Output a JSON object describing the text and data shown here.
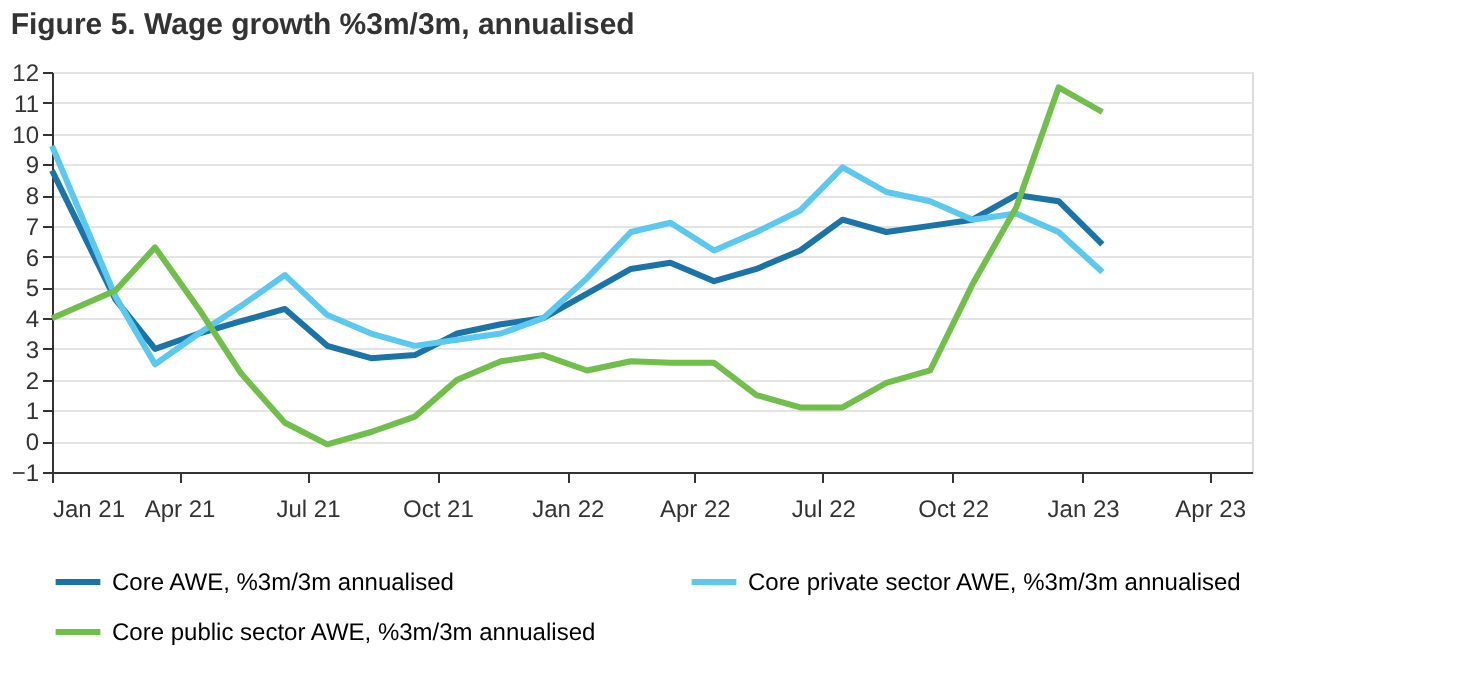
{
  "chart_data": {
    "type": "line",
    "title": "Figure 5. Wage growth %3m/3m, annualised",
    "x": [
      "2021-01-01",
      "2021-02-15",
      "2021-03-15",
      "2021-04-15",
      "2021-05-15",
      "2021-06-15",
      "2021-07-15",
      "2021-08-15",
      "2021-09-15",
      "2021-10-15",
      "2021-11-15",
      "2021-12-15",
      "2022-01-15",
      "2022-02-15",
      "2022-03-15",
      "2022-04-15",
      "2022-05-15",
      "2022-06-15",
      "2022-07-15",
      "2022-08-15",
      "2022-09-15",
      "2022-10-15",
      "2022-11-15",
      "2022-12-15",
      "2023-01-15"
    ],
    "series": [
      {
        "name": "Core AWE, %3m/3m annualised",
        "color": "#1a74a8",
        "values": [
          8.8,
          4.6,
          3.0,
          3.5,
          3.9,
          4.3,
          3.1,
          2.7,
          2.8,
          3.5,
          3.8,
          4.0,
          4.8,
          5.6,
          5.8,
          5.2,
          5.6,
          6.2,
          7.2,
          6.8,
          7.0,
          7.2,
          8.0,
          7.8,
          6.4
        ]
      },
      {
        "name": "Core private sector AWE, %3m/3m annualised",
        "color": "#5bc8ef",
        "values": [
          9.6,
          4.7,
          2.5,
          3.5,
          4.4,
          5.4,
          4.1,
          3.5,
          3.1,
          3.3,
          3.5,
          4.0,
          5.3,
          6.8,
          7.1,
          6.2,
          6.8,
          7.5,
          8.9,
          8.1,
          7.8,
          7.2,
          7.4,
          6.8,
          5.5
        ]
      },
      {
        "name": "Core public sector AWE, %3m/3m annualised",
        "color": "#6fbf4a",
        "values": [
          4.0,
          4.9,
          6.3,
          4.3,
          2.2,
          0.6,
          -0.1,
          0.3,
          0.8,
          2.0,
          2.6,
          2.8,
          2.3,
          2.6,
          2.55,
          2.55,
          1.5,
          1.1,
          1.1,
          1.9,
          2.3,
          5.1,
          7.6,
          11.5,
          10.7
        ]
      }
    ],
    "xlim": [
      "2021-01-01",
      "2023-05-01"
    ],
    "xticks": [
      {
        "value": "2021-01-01",
        "label": "Jan 21"
      },
      {
        "value": "2021-04-01",
        "label": "Apr 21"
      },
      {
        "value": "2021-07-01",
        "label": "Jul 21"
      },
      {
        "value": "2021-10-01",
        "label": "Oct 21"
      },
      {
        "value": "2022-01-01",
        "label": "Jan 22"
      },
      {
        "value": "2022-04-01",
        "label": "Apr 22"
      },
      {
        "value": "2022-07-01",
        "label": "Jul 22"
      },
      {
        "value": "2022-10-01",
        "label": "Oct 22"
      },
      {
        "value": "2023-01-01",
        "label": "Jan 23"
      },
      {
        "value": "2023-04-01",
        "label": "Apr 23"
      }
    ],
    "ylim": [
      -1,
      12
    ],
    "yticks": [
      -1,
      0,
      1,
      2,
      3,
      4,
      5,
      6,
      7,
      8,
      9,
      10,
      11,
      12
    ],
    "grid": "y",
    "legend": "bottom",
    "marker": "none",
    "line_style": "solid"
  }
}
